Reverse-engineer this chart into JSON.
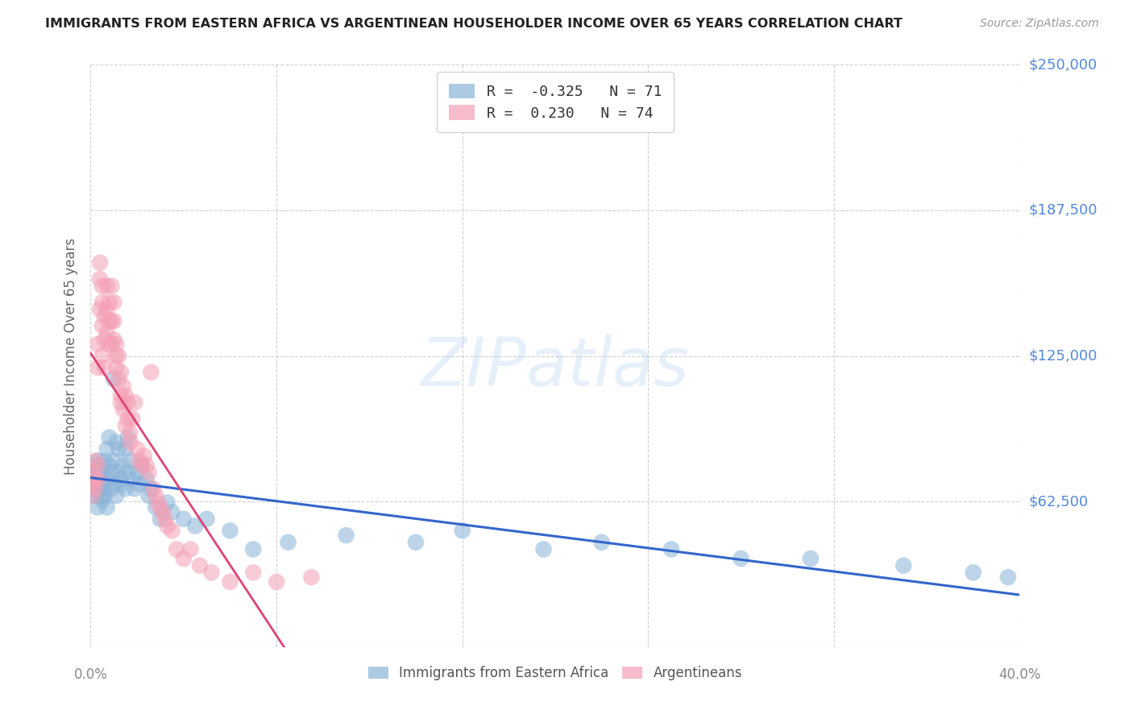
{
  "title": "IMMIGRANTS FROM EASTERN AFRICA VS ARGENTINEAN HOUSEHOLDER INCOME OVER 65 YEARS CORRELATION CHART",
  "source": "Source: ZipAtlas.com",
  "ylabel": "Householder Income Over 65 years",
  "xlim": [
    0.0,
    0.4
  ],
  "ylim": [
    0,
    250000
  ],
  "yticks": [
    0,
    62500,
    125000,
    187500,
    250000
  ],
  "ytick_labels": [
    "",
    "$62,500",
    "$125,000",
    "$187,500",
    "$250,000"
  ],
  "xtick_start_label": "0.0%",
  "xtick_end_label": "40.0%",
  "blue_R": -0.325,
  "blue_N": 71,
  "pink_R": 0.23,
  "pink_N": 74,
  "blue_color": "#8ab4d8",
  "pink_color": "#f4a0b5",
  "blue_line_color": "#3366cc",
  "pink_line_color": "#dd4477",
  "watermark": "ZIPatlas",
  "background_color": "#ffffff",
  "grid_color": "#cccccc",
  "title_color": "#222222",
  "axis_label_color": "#666666",
  "ytick_color": "#5588dd",
  "xtick_color": "#888888",
  "legend_border_color": "#cccccc",
  "blue_x": [
    0.001,
    0.001,
    0.001,
    0.002,
    0.002,
    0.002,
    0.002,
    0.003,
    0.003,
    0.003,
    0.003,
    0.004,
    0.004,
    0.004,
    0.005,
    0.005,
    0.005,
    0.006,
    0.006,
    0.006,
    0.007,
    0.007,
    0.007,
    0.008,
    0.008,
    0.009,
    0.009,
    0.01,
    0.01,
    0.01,
    0.011,
    0.011,
    0.012,
    0.012,
    0.013,
    0.013,
    0.014,
    0.015,
    0.015,
    0.016,
    0.016,
    0.017,
    0.018,
    0.019,
    0.02,
    0.021,
    0.022,
    0.024,
    0.025,
    0.026,
    0.028,
    0.03,
    0.033,
    0.035,
    0.04,
    0.045,
    0.05,
    0.06,
    0.07,
    0.085,
    0.11,
    0.14,
    0.16,
    0.195,
    0.22,
    0.25,
    0.28,
    0.31,
    0.35,
    0.38,
    0.395
  ],
  "blue_y": [
    75000,
    72000,
    68000,
    70000,
    65000,
    73000,
    78000,
    68000,
    75000,
    80000,
    60000,
    72000,
    65000,
    78000,
    68000,
    75000,
    63000,
    70000,
    80000,
    65000,
    85000,
    72000,
    60000,
    78000,
    90000,
    68000,
    75000,
    115000,
    80000,
    70000,
    88000,
    65000,
    75000,
    85000,
    70000,
    72000,
    78000,
    85000,
    68000,
    90000,
    75000,
    80000,
    72000,
    68000,
    75000,
    70000,
    78000,
    72000,
    65000,
    68000,
    60000,
    55000,
    62000,
    58000,
    55000,
    52000,
    55000,
    50000,
    42000,
    45000,
    48000,
    45000,
    50000,
    42000,
    45000,
    42000,
    38000,
    38000,
    35000,
    32000,
    30000
  ],
  "pink_x": [
    0.001,
    0.001,
    0.001,
    0.002,
    0.002,
    0.002,
    0.003,
    0.003,
    0.003,
    0.003,
    0.004,
    0.004,
    0.004,
    0.005,
    0.005,
    0.005,
    0.005,
    0.006,
    0.006,
    0.006,
    0.007,
    0.007,
    0.007,
    0.008,
    0.008,
    0.008,
    0.009,
    0.009,
    0.009,
    0.01,
    0.01,
    0.01,
    0.011,
    0.011,
    0.011,
    0.012,
    0.012,
    0.013,
    0.013,
    0.013,
    0.014,
    0.014,
    0.015,
    0.015,
    0.016,
    0.016,
    0.017,
    0.017,
    0.018,
    0.019,
    0.02,
    0.021,
    0.022,
    0.023,
    0.024,
    0.025,
    0.026,
    0.027,
    0.028,
    0.029,
    0.03,
    0.031,
    0.032,
    0.033,
    0.035,
    0.037,
    0.04,
    0.043,
    0.047,
    0.052,
    0.06,
    0.07,
    0.08,
    0.095
  ],
  "pink_y": [
    75000,
    70000,
    65000,
    80000,
    72000,
    68000,
    130000,
    120000,
    78000,
    72000,
    165000,
    158000,
    145000,
    155000,
    148000,
    138000,
    125000,
    142000,
    132000,
    120000,
    155000,
    145000,
    135000,
    148000,
    140000,
    130000,
    155000,
    140000,
    130000,
    140000,
    148000,
    132000,
    130000,
    125000,
    120000,
    115000,
    125000,
    118000,
    108000,
    105000,
    112000,
    102000,
    108000,
    95000,
    98000,
    105000,
    92000,
    88000,
    98000,
    105000,
    85000,
    80000,
    78000,
    82000,
    78000,
    75000,
    118000,
    68000,
    65000,
    62000,
    60000,
    58000,
    55000,
    52000,
    50000,
    42000,
    38000,
    42000,
    35000,
    32000,
    28000,
    32000,
    28000,
    30000
  ]
}
